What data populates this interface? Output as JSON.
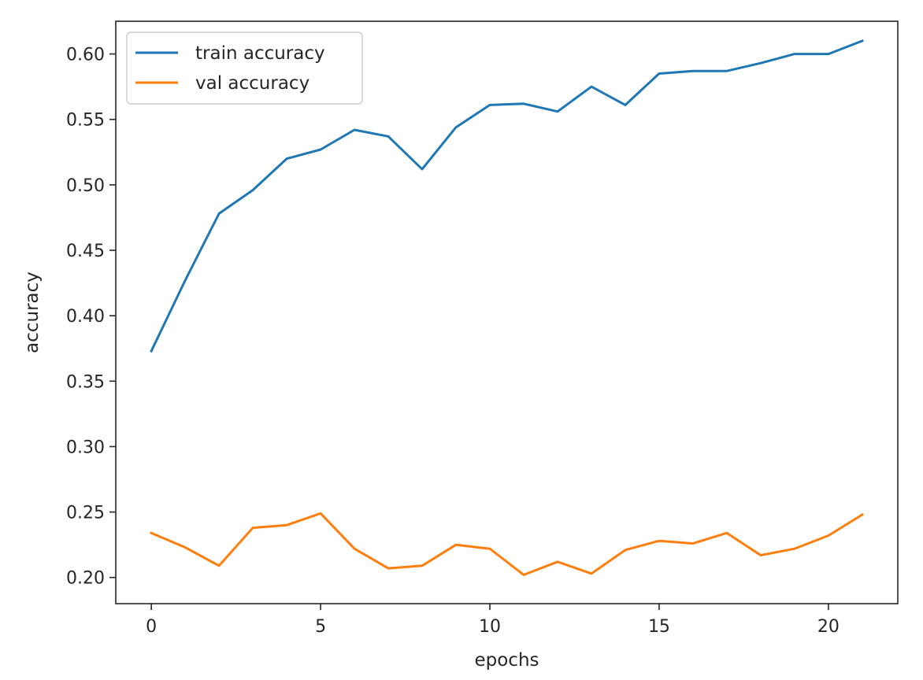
{
  "chart_data": {
    "type": "line",
    "title": "",
    "xlabel": "epochs",
    "ylabel": "accuracy",
    "xlim": [
      -1.05,
      22.05
    ],
    "ylim": [
      0.18,
      0.625
    ],
    "xticks": [
      0,
      5,
      10,
      15,
      20
    ],
    "yticks": [
      0.2,
      0.25,
      0.3,
      0.35,
      0.4,
      0.45,
      0.5,
      0.55,
      0.6
    ],
    "ytick_labels": [
      "0.20",
      "0.25",
      "0.30",
      "0.35",
      "0.40",
      "0.45",
      "0.50",
      "0.55",
      "0.60"
    ],
    "grid": false,
    "legend_position": "top-left",
    "x": [
      0,
      1,
      2,
      3,
      4,
      5,
      6,
      7,
      8,
      9,
      10,
      11,
      12,
      13,
      14,
      15,
      16,
      17,
      18,
      19,
      20,
      21
    ],
    "series": [
      {
        "name": "train accuracy",
        "color": "#1f77b4",
        "values": [
          0.373,
          0.427,
          0.478,
          0.496,
          0.52,
          0.527,
          0.542,
          0.537,
          0.512,
          0.544,
          0.561,
          0.562,
          0.556,
          0.575,
          0.561,
          0.585,
          0.587,
          0.587,
          0.593,
          0.6,
          0.6,
          0.61
        ]
      },
      {
        "name": "val accuracy",
        "color": "#ff7f0e",
        "values": [
          0.234,
          0.223,
          0.209,
          0.238,
          0.24,
          0.249,
          0.222,
          0.207,
          0.209,
          0.225,
          0.222,
          0.202,
          0.212,
          0.203,
          0.221,
          0.228,
          0.226,
          0.234,
          0.217,
          0.222,
          0.232,
          0.248
        ]
      }
    ]
  }
}
